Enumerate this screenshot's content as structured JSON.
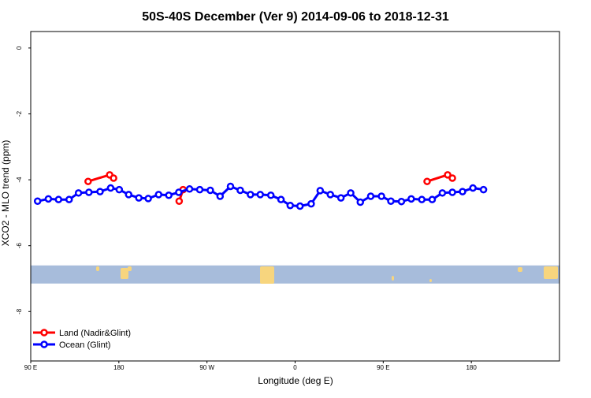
{
  "chart_data": {
    "type": "line",
    "title": "50S-40S December (Ver 9)   2014-09-06 to 2018-12-31",
    "xlabel": "Longitude (deg E)",
    "ylabel": "XCO2 - MLO trend (ppm)",
    "xlim": [
      -90,
      180
    ],
    "ylim": [
      -9.5,
      0.5
    ],
    "x_ticks": [
      {
        "value": -90,
        "label": "90 E"
      },
      {
        "value": -45,
        "label": "180"
      },
      {
        "value": 0,
        "label": "90 W"
      },
      {
        "value": 45,
        "label": "0"
      },
      {
        "value": 90,
        "label": "90 E"
      },
      {
        "value": 135,
        "label": "180"
      }
    ],
    "y_ticks": [
      {
        "value": 0,
        "label": "0"
      },
      {
        "value": -2,
        "label": "-2"
      },
      {
        "value": -4,
        "label": "-4"
      },
      {
        "value": -6,
        "label": "-6"
      },
      {
        "value": -8,
        "label": "-8"
      }
    ],
    "grid": false,
    "legend_position": "bottom-left",
    "series": [
      {
        "name": "Land (Nadir&Glint)",
        "color": "#ff0000",
        "segments": [
          [
            [
              -60.7,
              -4.05
            ],
            [
              -49.7,
              -3.85
            ],
            [
              -47.7,
              -3.95
            ]
          ],
          [
            [
              -14.2,
              -4.65
            ],
            [
              -12.2,
              -4.3
            ]
          ],
          [
            [
              112.4,
              -4.05
            ],
            [
              122.9,
              -3.85
            ],
            [
              125.3,
              -3.95
            ]
          ]
        ]
      },
      {
        "name": "Ocean (Glint)",
        "color": "#0000ff",
        "points": [
          [
            -86.5,
            -4.65
          ],
          [
            -81.0,
            -4.58
          ],
          [
            -75.8,
            -4.6
          ],
          [
            -70.4,
            -4.6
          ],
          [
            -65.6,
            -4.4
          ],
          [
            -60.3,
            -4.38
          ],
          [
            -54.6,
            -4.36
          ],
          [
            -49.2,
            -4.25
          ],
          [
            -44.8,
            -4.3
          ],
          [
            -40.0,
            -4.45
          ],
          [
            -34.8,
            -4.55
          ],
          [
            -30.0,
            -4.57
          ],
          [
            -24.7,
            -4.45
          ],
          [
            -19.5,
            -4.47
          ],
          [
            -14.4,
            -4.38
          ],
          [
            -8.9,
            -4.28
          ],
          [
            -3.7,
            -4.3
          ],
          [
            1.7,
            -4.32
          ],
          [
            6.7,
            -4.5
          ],
          [
            12.0,
            -4.2
          ],
          [
            17.0,
            -4.32
          ],
          [
            22.2,
            -4.45
          ],
          [
            27.2,
            -4.45
          ],
          [
            32.6,
            -4.47
          ],
          [
            37.8,
            -4.6
          ],
          [
            42.5,
            -4.78
          ],
          [
            47.5,
            -4.8
          ],
          [
            53.2,
            -4.73
          ],
          [
            57.8,
            -4.33
          ],
          [
            63.0,
            -4.45
          ],
          [
            68.4,
            -4.55
          ],
          [
            73.4,
            -4.4
          ],
          [
            78.3,
            -4.68
          ],
          [
            83.6,
            -4.5
          ],
          [
            89.1,
            -4.5
          ],
          [
            93.9,
            -4.65
          ],
          [
            99.3,
            -4.66
          ],
          [
            104.3,
            -4.58
          ],
          [
            109.7,
            -4.6
          ],
          [
            115.0,
            -4.6
          ],
          [
            120.2,
            -4.4
          ],
          [
            125.3,
            -4.38
          ],
          [
            130.5,
            -4.36
          ],
          [
            135.8,
            -4.25
          ],
          [
            141.2,
            -4.3
          ]
        ]
      }
    ],
    "map_strip": {
      "y_range": [
        -7.15,
        -6.6
      ],
      "ocean_color": "#a7bcdb",
      "land_color": "#f7d57e"
    }
  }
}
